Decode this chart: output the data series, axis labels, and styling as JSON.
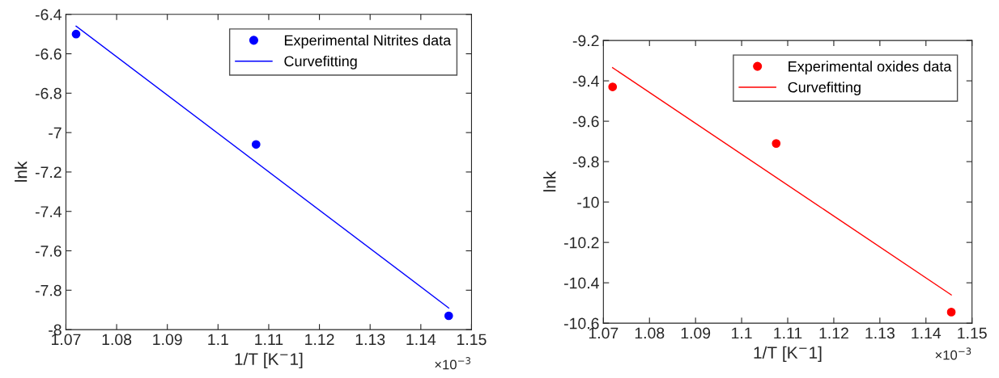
{
  "chart_data": [
    {
      "type": "scatter",
      "xlabel": "1/T [K$^{−}$1]",
      "ylabel": "lnk",
      "annotations": [
        "×10$^{−3}$"
      ],
      "legend": "top right",
      "grid": false,
      "xlim": [
        1.07,
        1.15
      ],
      "xticks": [
        1.07,
        1.08,
        1.09,
        1.1,
        1.11,
        1.12,
        1.13,
        1.14,
        1.15
      ],
      "ylim": [
        -8,
        -6.4
      ],
      "yticks": [
        -8,
        -7.8,
        -7.6,
        -7.4,
        -7.2,
        -7,
        -6.8,
        -6.6,
        -6.4
      ],
      "series": [
        {
          "name": "Experimental Nitrites data",
          "type": "scatter",
          "marker": "circle",
          "color": "#0000ff",
          "x": [
            1.072,
            1.1075,
            1.1455
          ],
          "values": [
            -6.5,
            -7.06,
            -7.93
          ]
        },
        {
          "name": "Curvefitting",
          "type": "line",
          "marker": "none",
          "line_style": "solid",
          "color": "#0000ff",
          "x": [
            1.072,
            1.1455
          ],
          "values": [
            -6.46,
            -7.89
          ]
        }
      ]
    },
    {
      "type": "scatter",
      "xlabel": "1/T [K$^{−}$1]",
      "ylabel": "lnk",
      "annotations": [
        "×10$^{−3}$"
      ],
      "legend": "top right",
      "grid": false,
      "xlim": [
        1.07,
        1.15
      ],
      "xticks": [
        1.07,
        1.08,
        1.09,
        1.1,
        1.11,
        1.12,
        1.13,
        1.14,
        1.15
      ],
      "ylim": [
        -10.6,
        -9.2
      ],
      "yticks": [
        -10.6,
        -10.4,
        -10.2,
        -10,
        -9.8,
        -9.6,
        -9.4,
        -9.2
      ],
      "series": [
        {
          "name": "Experimental oxides data",
          "type": "scatter",
          "marker": "circle",
          "color": "#ff0000",
          "x": [
            1.072,
            1.1075,
            1.1455
          ],
          "values": [
            -9.43,
            -9.71,
            -10.545
          ]
        },
        {
          "name": "Curvefitting",
          "type": "line",
          "marker": "none",
          "line_style": "solid",
          "color": "#ff0000",
          "x": [
            1.072,
            1.1455
          ],
          "values": [
            -9.335,
            -10.46
          ]
        }
      ]
    }
  ]
}
